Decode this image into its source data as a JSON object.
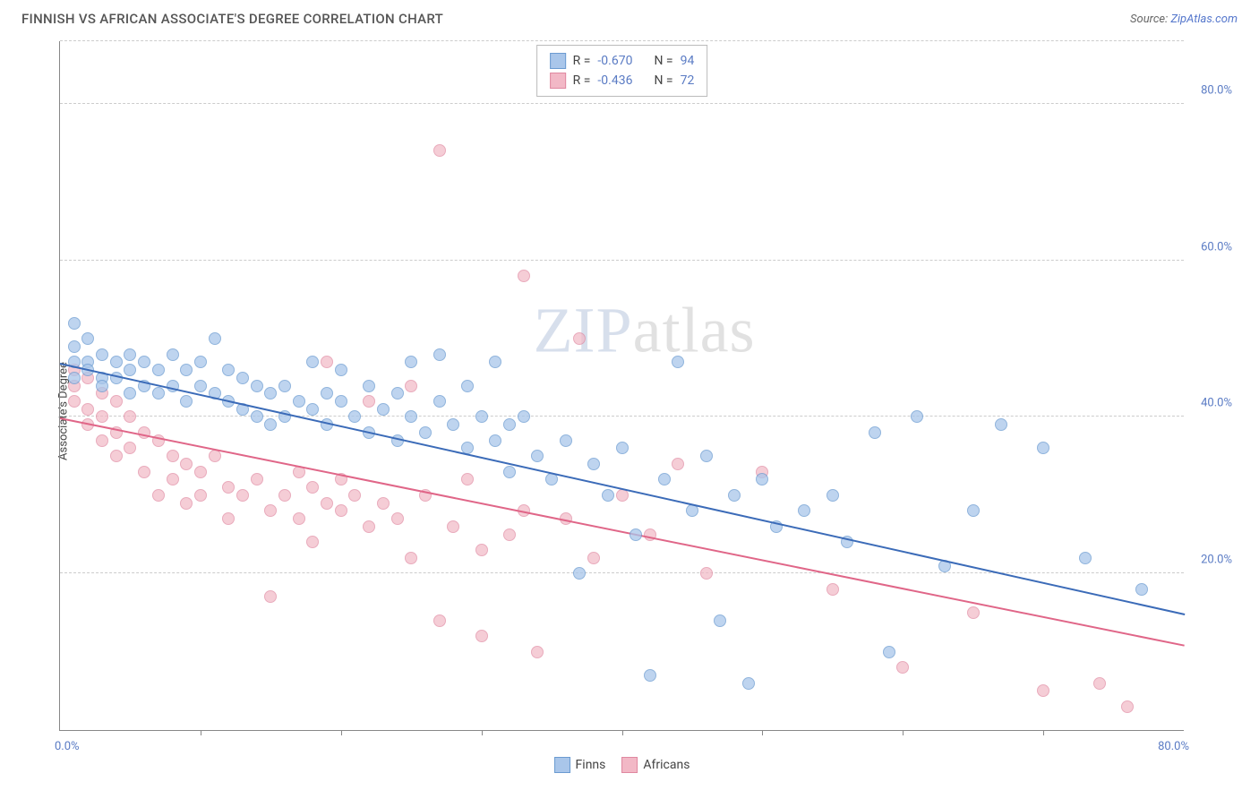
{
  "title": "FINNISH VS AFRICAN ASSOCIATE'S DEGREE CORRELATION CHART",
  "source_prefix": "Source: ",
  "source_name": "ZipAtlas.com",
  "y_axis_label": "Associate's Degree",
  "watermark_zip": "ZIP",
  "watermark_atlas": "atlas",
  "chart": {
    "type": "scatter",
    "xlim": [
      0,
      80
    ],
    "ylim": [
      0,
      88
    ],
    "x_tick_label_left": "0.0%",
    "x_tick_label_right": "80.0%",
    "x_tick_positions": [
      10,
      20,
      30,
      40,
      50,
      60,
      70
    ],
    "y_gridlines": [
      20,
      40,
      60,
      80,
      88
    ],
    "y_tick_labels": {
      "20": "20.0%",
      "40": "40.0%",
      "60": "60.0%",
      "80": "80.0%"
    },
    "background_color": "#ffffff",
    "grid_color": "#cccccc",
    "axis_color": "#888888",
    "tick_label_color": "#5a7bc4",
    "series": {
      "finns": {
        "label": "Finns",
        "fill": "#a9c6ea",
        "stroke": "#6b9bd1",
        "opacity": 0.75,
        "marker_radius": 7,
        "trend_color": "#3b6bb8",
        "trend_start": {
          "x": 0,
          "y": 47
        },
        "trend_end": {
          "x": 80,
          "y": 15
        },
        "R_label": "R = ",
        "R": "-0.670",
        "N_label": "N = ",
        "N": "94",
        "points": [
          {
            "x": 1,
            "y": 52
          },
          {
            "x": 1,
            "y": 49
          },
          {
            "x": 1,
            "y": 47
          },
          {
            "x": 1,
            "y": 45
          },
          {
            "x": 2,
            "y": 50
          },
          {
            "x": 2,
            "y": 47
          },
          {
            "x": 2,
            "y": 46
          },
          {
            "x": 3,
            "y": 48
          },
          {
            "x": 3,
            "y": 45
          },
          {
            "x": 3,
            "y": 44
          },
          {
            "x": 4,
            "y": 47
          },
          {
            "x": 4,
            "y": 45
          },
          {
            "x": 5,
            "y": 48
          },
          {
            "x": 5,
            "y": 46
          },
          {
            "x": 5,
            "y": 43
          },
          {
            "x": 6,
            "y": 47
          },
          {
            "x": 6,
            "y": 44
          },
          {
            "x": 7,
            "y": 46
          },
          {
            "x": 7,
            "y": 43
          },
          {
            "x": 8,
            "y": 48
          },
          {
            "x": 8,
            "y": 44
          },
          {
            "x": 9,
            "y": 46
          },
          {
            "x": 9,
            "y": 42
          },
          {
            "x": 10,
            "y": 47
          },
          {
            "x": 10,
            "y": 44
          },
          {
            "x": 11,
            "y": 50
          },
          {
            "x": 11,
            "y": 43
          },
          {
            "x": 12,
            "y": 46
          },
          {
            "x": 12,
            "y": 42
          },
          {
            "x": 13,
            "y": 45
          },
          {
            "x": 13,
            "y": 41
          },
          {
            "x": 14,
            "y": 44
          },
          {
            "x": 14,
            "y": 40
          },
          {
            "x": 15,
            "y": 43
          },
          {
            "x": 15,
            "y": 39
          },
          {
            "x": 16,
            "y": 44
          },
          {
            "x": 16,
            "y": 40
          },
          {
            "x": 17,
            "y": 42
          },
          {
            "x": 18,
            "y": 47
          },
          {
            "x": 18,
            "y": 41
          },
          {
            "x": 19,
            "y": 43
          },
          {
            "x": 19,
            "y": 39
          },
          {
            "x": 20,
            "y": 46
          },
          {
            "x": 20,
            "y": 42
          },
          {
            "x": 21,
            "y": 40
          },
          {
            "x": 22,
            "y": 44
          },
          {
            "x": 22,
            "y": 38
          },
          {
            "x": 23,
            "y": 41
          },
          {
            "x": 24,
            "y": 43
          },
          {
            "x": 24,
            "y": 37
          },
          {
            "x": 25,
            "y": 47
          },
          {
            "x": 25,
            "y": 40
          },
          {
            "x": 26,
            "y": 38
          },
          {
            "x": 27,
            "y": 48
          },
          {
            "x": 27,
            "y": 42
          },
          {
            "x": 28,
            "y": 39
          },
          {
            "x": 29,
            "y": 44
          },
          {
            "x": 29,
            "y": 36
          },
          {
            "x": 30,
            "y": 40
          },
          {
            "x": 31,
            "y": 47
          },
          {
            "x": 31,
            "y": 37
          },
          {
            "x": 32,
            "y": 33
          },
          {
            "x": 32,
            "y": 39
          },
          {
            "x": 33,
            "y": 40
          },
          {
            "x": 34,
            "y": 35
          },
          {
            "x": 35,
            "y": 32
          },
          {
            "x": 36,
            "y": 37
          },
          {
            "x": 37,
            "y": 20
          },
          {
            "x": 38,
            "y": 34
          },
          {
            "x": 39,
            "y": 30
          },
          {
            "x": 40,
            "y": 36
          },
          {
            "x": 41,
            "y": 25
          },
          {
            "x": 42,
            "y": 7
          },
          {
            "x": 43,
            "y": 32
          },
          {
            "x": 44,
            "y": 47
          },
          {
            "x": 45,
            "y": 28
          },
          {
            "x": 46,
            "y": 35
          },
          {
            "x": 47,
            "y": 14
          },
          {
            "x": 48,
            "y": 30
          },
          {
            "x": 49,
            "y": 6
          },
          {
            "x": 50,
            "y": 32
          },
          {
            "x": 51,
            "y": 26
          },
          {
            "x": 53,
            "y": 28
          },
          {
            "x": 55,
            "y": 30
          },
          {
            "x": 56,
            "y": 24
          },
          {
            "x": 58,
            "y": 38
          },
          {
            "x": 59,
            "y": 10
          },
          {
            "x": 61,
            "y": 40
          },
          {
            "x": 63,
            "y": 21
          },
          {
            "x": 65,
            "y": 28
          },
          {
            "x": 67,
            "y": 39
          },
          {
            "x": 70,
            "y": 36
          },
          {
            "x": 73,
            "y": 22
          },
          {
            "x": 77,
            "y": 18
          }
        ]
      },
      "africans": {
        "label": "Africans",
        "fill": "#f2b8c6",
        "stroke": "#e088a0",
        "opacity": 0.7,
        "marker_radius": 7,
        "trend_color": "#e06688",
        "trend_start": {
          "x": 0,
          "y": 40
        },
        "trend_end": {
          "x": 80,
          "y": 11
        },
        "R_label": "R = ",
        "R": "-0.436",
        "N_label": "N = ",
        "N": "72",
        "points": [
          {
            "x": 1,
            "y": 46
          },
          {
            "x": 1,
            "y": 44
          },
          {
            "x": 1,
            "y": 42
          },
          {
            "x": 2,
            "y": 45
          },
          {
            "x": 2,
            "y": 41
          },
          {
            "x": 2,
            "y": 39
          },
          {
            "x": 3,
            "y": 43
          },
          {
            "x": 3,
            "y": 40
          },
          {
            "x": 3,
            "y": 37
          },
          {
            "x": 4,
            "y": 42
          },
          {
            "x": 4,
            "y": 38
          },
          {
            "x": 4,
            "y": 35
          },
          {
            "x": 5,
            "y": 40
          },
          {
            "x": 5,
            "y": 36
          },
          {
            "x": 6,
            "y": 38
          },
          {
            "x": 6,
            "y": 33
          },
          {
            "x": 7,
            "y": 37
          },
          {
            "x": 7,
            "y": 30
          },
          {
            "x": 8,
            "y": 35
          },
          {
            "x": 8,
            "y": 32
          },
          {
            "x": 9,
            "y": 34
          },
          {
            "x": 9,
            "y": 29
          },
          {
            "x": 10,
            "y": 33
          },
          {
            "x": 10,
            "y": 30
          },
          {
            "x": 11,
            "y": 35
          },
          {
            "x": 12,
            "y": 31
          },
          {
            "x": 12,
            "y": 27
          },
          {
            "x": 13,
            "y": 30
          },
          {
            "x": 14,
            "y": 32
          },
          {
            "x": 15,
            "y": 28
          },
          {
            "x": 15,
            "y": 17
          },
          {
            "x": 16,
            "y": 30
          },
          {
            "x": 17,
            "y": 33
          },
          {
            "x": 17,
            "y": 27
          },
          {
            "x": 18,
            "y": 31
          },
          {
            "x": 18,
            "y": 24
          },
          {
            "x": 19,
            "y": 29
          },
          {
            "x": 19,
            "y": 47
          },
          {
            "x": 20,
            "y": 28
          },
          {
            "x": 20,
            "y": 32
          },
          {
            "x": 21,
            "y": 30
          },
          {
            "x": 22,
            "y": 42
          },
          {
            "x": 22,
            "y": 26
          },
          {
            "x": 23,
            "y": 29
          },
          {
            "x": 24,
            "y": 27
          },
          {
            "x": 25,
            "y": 44
          },
          {
            "x": 25,
            "y": 22
          },
          {
            "x": 26,
            "y": 30
          },
          {
            "x": 27,
            "y": 74
          },
          {
            "x": 27,
            "y": 14
          },
          {
            "x": 28,
            "y": 26
          },
          {
            "x": 29,
            "y": 32
          },
          {
            "x": 30,
            "y": 23
          },
          {
            "x": 30,
            "y": 12
          },
          {
            "x": 32,
            "y": 25
          },
          {
            "x": 33,
            "y": 58
          },
          {
            "x": 33,
            "y": 28
          },
          {
            "x": 34,
            "y": 10
          },
          {
            "x": 36,
            "y": 27
          },
          {
            "x": 37,
            "y": 50
          },
          {
            "x": 38,
            "y": 22
          },
          {
            "x": 40,
            "y": 30
          },
          {
            "x": 42,
            "y": 25
          },
          {
            "x": 44,
            "y": 34
          },
          {
            "x": 46,
            "y": 20
          },
          {
            "x": 50,
            "y": 33
          },
          {
            "x": 55,
            "y": 18
          },
          {
            "x": 60,
            "y": 8
          },
          {
            "x": 65,
            "y": 15
          },
          {
            "x": 70,
            "y": 5
          },
          {
            "x": 74,
            "y": 6
          },
          {
            "x": 76,
            "y": 3
          }
        ]
      }
    }
  }
}
